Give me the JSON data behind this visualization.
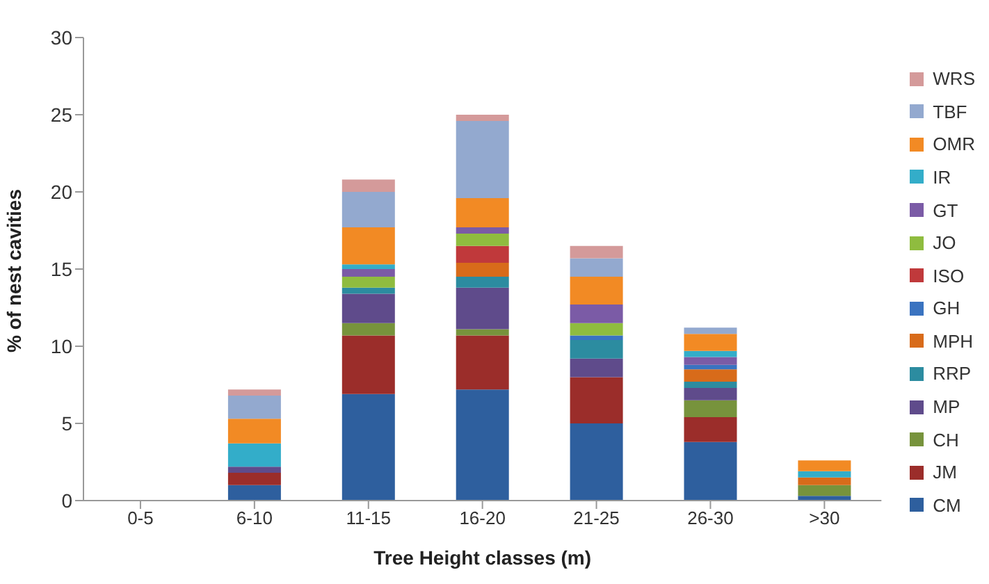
{
  "chart_data": {
    "type": "bar",
    "stacked": true,
    "xlabel": "Tree Height classes (m)",
    "ylabel": "% of nest cavities",
    "categories": [
      "0-5",
      "6-10",
      "11-15",
      "16-20",
      "21-25",
      "26-30",
      ">30"
    ],
    "ylim": [
      0,
      30
    ],
    "yticks": [
      0,
      5,
      10,
      15,
      20,
      25,
      30
    ],
    "grid": false,
    "legend": "right",
    "series": [
      {
        "name": "CM",
        "color": "#2e5f9e",
        "values": [
          0,
          1.0,
          6.9,
          7.2,
          5.0,
          3.8,
          0.3
        ]
      },
      {
        "name": "JM",
        "color": "#9b2d2a",
        "values": [
          0,
          0.8,
          3.8,
          3.5,
          3.0,
          1.6,
          0
        ]
      },
      {
        "name": "CH",
        "color": "#77933c",
        "values": [
          0,
          0,
          0.8,
          0.4,
          0,
          1.1,
          0.7
        ]
      },
      {
        "name": "MP",
        "color": "#5f4b8b",
        "values": [
          0,
          0.4,
          1.9,
          2.7,
          1.2,
          0.8,
          0
        ]
      },
      {
        "name": "RRP",
        "color": "#2c8ca0",
        "values": [
          0,
          0,
          0.4,
          0.7,
          1.2,
          0.4,
          0
        ]
      },
      {
        "name": "MPH",
        "color": "#d86b1a",
        "values": [
          0,
          0,
          0,
          0.9,
          0,
          0.8,
          0.5
        ]
      },
      {
        "name": "GH",
        "color": "#3a73c0",
        "values": [
          0,
          0,
          0,
          0,
          0.3,
          0.3,
          0
        ]
      },
      {
        "name": "ISO",
        "color": "#c0393b",
        "values": [
          0,
          0,
          0,
          1.1,
          0,
          0,
          0
        ]
      },
      {
        "name": "JO",
        "color": "#8fbc3f",
        "values": [
          0,
          0,
          0.7,
          0.8,
          0.8,
          0,
          0
        ]
      },
      {
        "name": "GT",
        "color": "#7b5ba6",
        "values": [
          0,
          0,
          0.5,
          0.4,
          1.2,
          0.5,
          0
        ]
      },
      {
        "name": "IR",
        "color": "#33adc9",
        "values": [
          0,
          1.5,
          0.3,
          0,
          0,
          0.4,
          0.4
        ]
      },
      {
        "name": "OMR",
        "color": "#f28a24",
        "values": [
          0,
          1.6,
          2.4,
          1.9,
          1.8,
          1.1,
          0.7
        ]
      },
      {
        "name": "TBF",
        "color": "#93a9cf",
        "values": [
          0,
          1.5,
          2.3,
          5.0,
          1.2,
          0.4,
          0
        ]
      },
      {
        "name": "WRS",
        "color": "#d49a9a",
        "values": [
          0,
          0.4,
          0.8,
          0.4,
          0.8,
          0,
          0
        ]
      }
    ]
  }
}
